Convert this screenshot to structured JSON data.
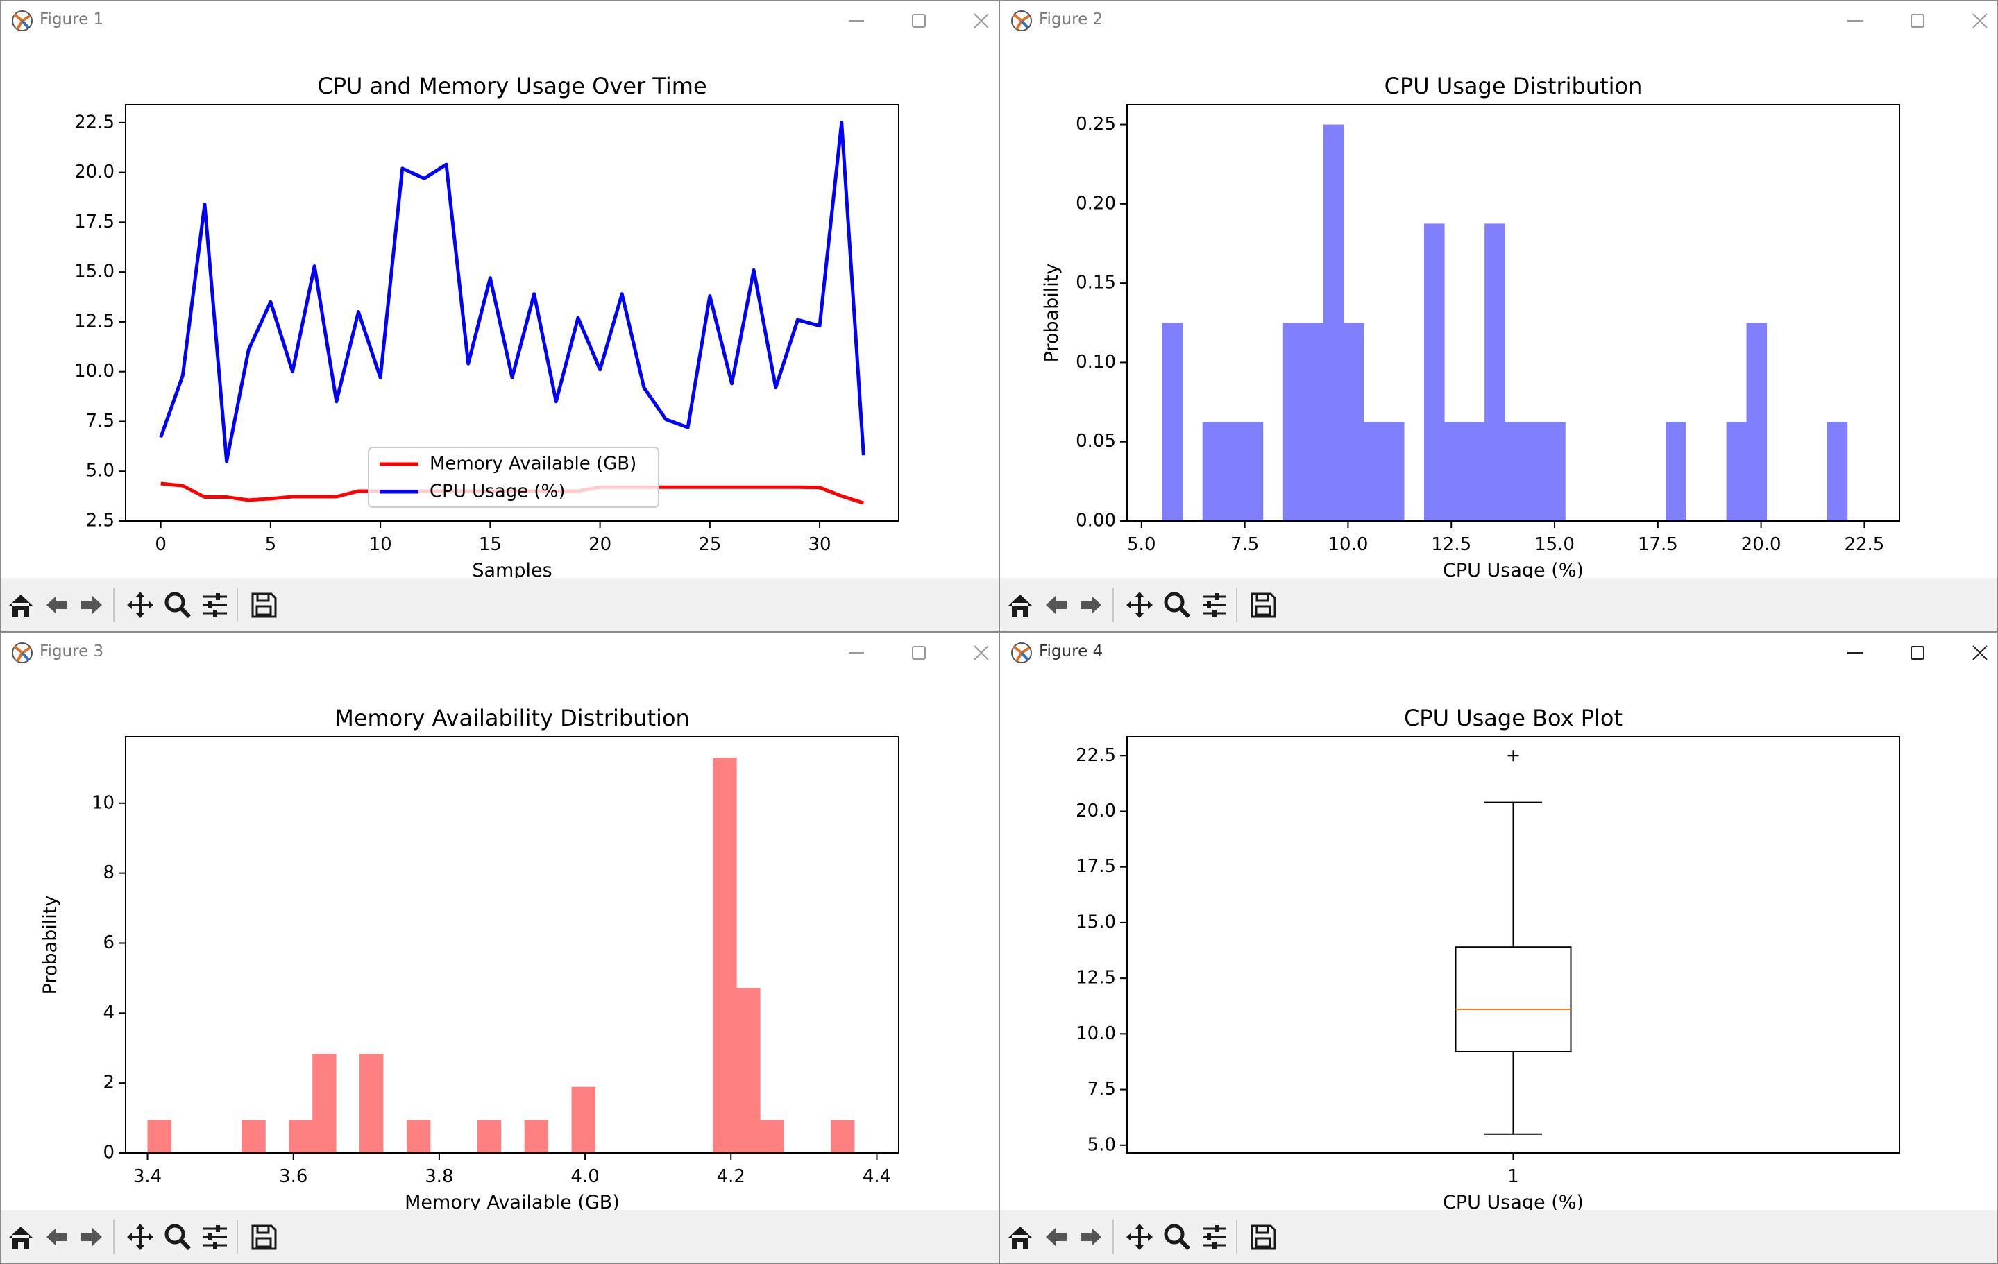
{
  "windows": [
    {
      "title": "Figure 1"
    },
    {
      "title": "Figure 2"
    },
    {
      "title": "Figure 3"
    },
    {
      "title": "Figure 4"
    }
  ],
  "toolbar": {
    "home": "home-icon",
    "back": "arrow-left-icon",
    "forward": "arrow-right-icon",
    "pan": "move-icon",
    "zoom": "magnifier-icon",
    "configure": "sliders-icon",
    "save": "save-icon"
  },
  "chart_data": [
    {
      "type": "line",
      "title": "CPU and Memory Usage Over Time",
      "xlabel": "Samples",
      "ylabel": "",
      "xlim": [
        -1.6,
        33.6
      ],
      "ylim": [
        2.5,
        23.4
      ],
      "xticks": [
        0,
        5,
        10,
        15,
        20,
        25,
        30
      ],
      "yticks": [
        2.5,
        5.0,
        7.5,
        10.0,
        12.5,
        15.0,
        17.5,
        20.0,
        22.5
      ],
      "legend": "lower-center",
      "series": [
        {
          "name": "Memory Available (GB)",
          "color": "#ff0000",
          "x": [
            0,
            1,
            2,
            3,
            4,
            5,
            6,
            7,
            8,
            9,
            10,
            11,
            12,
            13,
            14,
            15,
            16,
            17,
            18,
            19,
            20,
            21,
            22,
            23,
            24,
            25,
            26,
            27,
            28,
            29,
            30,
            31,
            32
          ],
          "values": [
            4.38,
            4.27,
            3.7,
            3.7,
            3.55,
            3.62,
            3.72,
            3.72,
            3.72,
            4.0,
            4.0,
            4.0,
            4.0,
            4.0,
            4.0,
            4.0,
            4.0,
            4.0,
            4.0,
            4.0,
            4.2,
            4.2,
            4.2,
            4.2,
            4.2,
            4.2,
            4.2,
            4.2,
            4.2,
            4.2,
            4.18,
            3.75,
            3.4
          ]
        },
        {
          "name": "CPU Usage (%)",
          "color": "#0000ff",
          "x": [
            0,
            1,
            2,
            3,
            4,
            5,
            6,
            7,
            8,
            9,
            10,
            11,
            12,
            13,
            14,
            15,
            16,
            17,
            18,
            19,
            20,
            21,
            22,
            23,
            24,
            25,
            26,
            27,
            28,
            29,
            30,
            31,
            32
          ],
          "values": [
            6.7,
            9.8,
            18.4,
            5.5,
            11.1,
            13.5,
            10.0,
            15.3,
            8.5,
            13.0,
            9.7,
            20.2,
            19.7,
            20.4,
            10.4,
            14.7,
            9.7,
            13.9,
            8.5,
            12.7,
            10.1,
            13.9,
            9.2,
            7.6,
            7.2,
            13.8,
            9.4,
            15.1,
            9.2,
            12.6,
            12.3,
            22.5,
            5.8
          ]
        }
      ]
    },
    {
      "type": "bar",
      "title": "CPU Usage Distribution",
      "xlabel": "CPU Usage (%)",
      "ylabel": "Probability",
      "xlim": [
        4.65,
        23.35
      ],
      "ylim": [
        0,
        0.2625
      ],
      "xticks": [
        5.0,
        7.5,
        10.0,
        12.5,
        15.0,
        17.5,
        20.0,
        22.5
      ],
      "yticks": [
        0.0,
        0.05,
        0.1,
        0.15,
        0.2,
        0.25
      ],
      "bin_start": 5.5,
      "bin_width": 0.4878,
      "values": [
        0.125,
        0,
        0.0625,
        0.0625,
        0.0625,
        0,
        0.125,
        0.125,
        0.25,
        0.125,
        0.0625,
        0.0625,
        0,
        0.1875,
        0.0625,
        0.0625,
        0.1875,
        0.0625,
        0.0625,
        0.0625,
        0,
        0,
        0,
        0,
        0,
        0.0625,
        0,
        0,
        0.0625,
        0.125,
        0,
        0,
        0,
        0.0625
      ],
      "color": "#8080ff"
    },
    {
      "type": "bar",
      "title": "Memory Availability Distribution",
      "xlabel": "Memory Available (GB)",
      "ylabel": "Probability",
      "xlim": [
        3.37,
        4.43
      ],
      "ylim": [
        0,
        11.9
      ],
      "xticks": [
        3.4,
        3.6,
        3.8,
        4.0,
        4.2,
        4.4
      ],
      "yticks": [
        0,
        2,
        4,
        6,
        8,
        10
      ],
      "bin_start": 3.4,
      "bin_width": 0.0323,
      "values": [
        0.94,
        0,
        0,
        0,
        0.94,
        0,
        0.94,
        2.83,
        0,
        2.83,
        0,
        0.94,
        0,
        0,
        0.94,
        0,
        0.94,
        0,
        1.89,
        0,
        0,
        0,
        0,
        0,
        11.3,
        4.72,
        0.94,
        0,
        0,
        0.94
      ],
      "color": "#ff8080"
    },
    {
      "type": "box",
      "title": "CPU Usage Box Plot",
      "xlabel": "CPU Usage (%)",
      "ylabel": "",
      "ylim": [
        4.65,
        23.35
      ],
      "yticks": [
        5.0,
        7.5,
        10.0,
        12.5,
        15.0,
        17.5,
        20.0,
        22.5
      ],
      "xticks": [
        "1"
      ],
      "whisker_low": 5.5,
      "q1": 9.2,
      "median": 11.1,
      "q3": 13.9,
      "whisker_high": 20.4,
      "outliers": [
        22.5
      ],
      "median_color": "#ff7f0e"
    }
  ]
}
